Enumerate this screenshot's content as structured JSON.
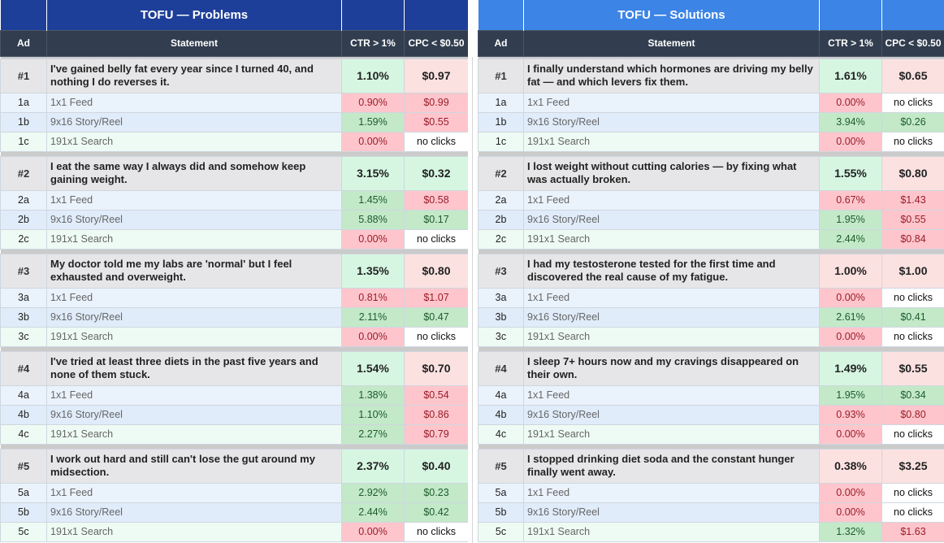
{
  "panels": [
    {
      "title": "TOFU — Problems",
      "headers": {
        "ad": "Ad",
        "statement": "Statement",
        "ctr": "CTR > 1%",
        "cpc": "CPC < $0.50"
      },
      "ads": [
        {
          "id": "#1",
          "statement": "I've gained belly fat every year since I turned 40, and nothing I do reverses it.",
          "ctr": "1.10%",
          "ctr_status": "good",
          "cpc": "$0.97",
          "cpc_status": "bad",
          "variants": [
            {
              "id": "1a",
              "label": "1x1 Feed",
              "ctr": "0.90%",
              "ctr_status": "bad",
              "cpc": "$0.99",
              "cpc_status": "bad"
            },
            {
              "id": "1b",
              "label": "9x16 Story/Reel",
              "ctr": "1.59%",
              "ctr_status": "good",
              "cpc": "$0.55",
              "cpc_status": "bad"
            },
            {
              "id": "1c",
              "label": "191x1 Search",
              "ctr": "0.00%",
              "ctr_status": "bad",
              "cpc": "no clicks",
              "cpc_status": "none"
            }
          ]
        },
        {
          "id": "#2",
          "statement": "I eat the same way I always did and somehow keep gaining weight.",
          "ctr": "3.15%",
          "ctr_status": "good",
          "cpc": "$0.32",
          "cpc_status": "good",
          "variants": [
            {
              "id": "2a",
              "label": "1x1 Feed",
              "ctr": "1.45%",
              "ctr_status": "good",
              "cpc": "$0.58",
              "cpc_status": "bad"
            },
            {
              "id": "2b",
              "label": "9x16 Story/Reel",
              "ctr": "5.88%",
              "ctr_status": "good",
              "cpc": "$0.17",
              "cpc_status": "good"
            },
            {
              "id": "2c",
              "label": "191x1 Search",
              "ctr": "0.00%",
              "ctr_status": "bad",
              "cpc": "no clicks",
              "cpc_status": "none"
            }
          ]
        },
        {
          "id": "#3",
          "statement": "My doctor told me my labs are 'normal' but I feel exhausted and overweight.",
          "ctr": "1.35%",
          "ctr_status": "good",
          "cpc": "$0.80",
          "cpc_status": "bad",
          "variants": [
            {
              "id": "3a",
              "label": "1x1 Feed",
              "ctr": "0.81%",
              "ctr_status": "bad",
              "cpc": "$1.07",
              "cpc_status": "bad"
            },
            {
              "id": "3b",
              "label": "9x16 Story/Reel",
              "ctr": "2.11%",
              "ctr_status": "good",
              "cpc": "$0.47",
              "cpc_status": "good"
            },
            {
              "id": "3c",
              "label": "191x1 Search",
              "ctr": "0.00%",
              "ctr_status": "bad",
              "cpc": "no clicks",
              "cpc_status": "none"
            }
          ]
        },
        {
          "id": "#4",
          "statement": "I've tried at least three diets in the past five years and none of them stuck.",
          "ctr": "1.54%",
          "ctr_status": "good",
          "cpc": "$0.70",
          "cpc_status": "bad",
          "variants": [
            {
              "id": "4a",
              "label": "1x1 Feed",
              "ctr": "1.38%",
              "ctr_status": "good",
              "cpc": "$0.54",
              "cpc_status": "bad"
            },
            {
              "id": "4b",
              "label": "9x16 Story/Reel",
              "ctr": "1.10%",
              "ctr_status": "good",
              "cpc": "$0.86",
              "cpc_status": "bad"
            },
            {
              "id": "4c",
              "label": "191x1 Search",
              "ctr": "2.27%",
              "ctr_status": "good",
              "cpc": "$0.79",
              "cpc_status": "bad"
            }
          ]
        },
        {
          "id": "#5",
          "statement": "I work out hard and still can't lose the gut around my midsection.",
          "ctr": "2.37%",
          "ctr_status": "good",
          "cpc": "$0.40",
          "cpc_status": "good",
          "variants": [
            {
              "id": "5a",
              "label": "1x1 Feed",
              "ctr": "2.92%",
              "ctr_status": "good",
              "cpc": "$0.23",
              "cpc_status": "good"
            },
            {
              "id": "5b",
              "label": "9x16 Story/Reel",
              "ctr": "2.44%",
              "ctr_status": "good",
              "cpc": "$0.42",
              "cpc_status": "good"
            },
            {
              "id": "5c",
              "label": "191x1 Search",
              "ctr": "0.00%",
              "ctr_status": "bad",
              "cpc": "no clicks",
              "cpc_status": "none"
            }
          ]
        }
      ]
    },
    {
      "title": "TOFU — Solutions",
      "headers": {
        "ad": "Ad",
        "statement": "Statement",
        "ctr": "CTR > 1%",
        "cpc": "CPC < $0.50"
      },
      "ads": [
        {
          "id": "#1",
          "statement": "I finally understand which hormones are driving my belly fat — and which levers fix them.",
          "ctr": "1.61%",
          "ctr_status": "good",
          "cpc": "$0.65",
          "cpc_status": "bad",
          "variants": [
            {
              "id": "1a",
              "label": "1x1 Feed",
              "ctr": "0.00%",
              "ctr_status": "bad",
              "cpc": "no clicks",
              "cpc_status": "none"
            },
            {
              "id": "1b",
              "label": "9x16 Story/Reel",
              "ctr": "3.94%",
              "ctr_status": "good",
              "cpc": "$0.26",
              "cpc_status": "good"
            },
            {
              "id": "1c",
              "label": "191x1 Search",
              "ctr": "0.00%",
              "ctr_status": "bad",
              "cpc": "no clicks",
              "cpc_status": "none"
            }
          ]
        },
        {
          "id": "#2",
          "statement": "I lost weight without cutting calories — by fixing what was actually broken.",
          "ctr": "1.55%",
          "ctr_status": "good",
          "cpc": "$0.80",
          "cpc_status": "bad",
          "variants": [
            {
              "id": "2a",
              "label": "1x1 Feed",
              "ctr": "0.67%",
              "ctr_status": "bad",
              "cpc": "$1.43",
              "cpc_status": "bad"
            },
            {
              "id": "2b",
              "label": "9x16 Story/Reel",
              "ctr": "1.95%",
              "ctr_status": "good",
              "cpc": "$0.55",
              "cpc_status": "bad"
            },
            {
              "id": "2c",
              "label": "191x1 Search",
              "ctr": "2.44%",
              "ctr_status": "good",
              "cpc": "$0.84",
              "cpc_status": "bad"
            }
          ]
        },
        {
          "id": "#3",
          "statement": "I had my testosterone tested for the first time and discovered the real cause of my fatigue.",
          "ctr": "1.00%",
          "ctr_status": "bad",
          "cpc": "$1.00",
          "cpc_status": "bad",
          "variants": [
            {
              "id": "3a",
              "label": "1x1 Feed",
              "ctr": "0.00%",
              "ctr_status": "bad",
              "cpc": "no clicks",
              "cpc_status": "none"
            },
            {
              "id": "3b",
              "label": "9x16 Story/Reel",
              "ctr": "2.61%",
              "ctr_status": "good",
              "cpc": "$0.41",
              "cpc_status": "good"
            },
            {
              "id": "3c",
              "label": "191x1 Search",
              "ctr": "0.00%",
              "ctr_status": "bad",
              "cpc": "no clicks",
              "cpc_status": "none"
            }
          ]
        },
        {
          "id": "#4",
          "statement": "I sleep 7+ hours now and my cravings disappeared on their own.",
          "ctr": "1.49%",
          "ctr_status": "good",
          "cpc": "$0.55",
          "cpc_status": "bad",
          "variants": [
            {
              "id": "4a",
              "label": "1x1 Feed",
              "ctr": "1.95%",
              "ctr_status": "good",
              "cpc": "$0.34",
              "cpc_status": "good"
            },
            {
              "id": "4b",
              "label": "9x16 Story/Reel",
              "ctr": "0.93%",
              "ctr_status": "bad",
              "cpc": "$0.80",
              "cpc_status": "bad"
            },
            {
              "id": "4c",
              "label": "191x1 Search",
              "ctr": "0.00%",
              "ctr_status": "bad",
              "cpc": "no clicks",
              "cpc_status": "none"
            }
          ]
        },
        {
          "id": "#5",
          "statement": "I stopped drinking diet soda and the constant hunger finally went away.",
          "ctr": "0.38%",
          "ctr_status": "bad",
          "cpc": "$3.25",
          "cpc_status": "bad",
          "variants": [
            {
              "id": "5a",
              "label": "1x1 Feed",
              "ctr": "0.00%",
              "ctr_status": "bad",
              "cpc": "no clicks",
              "cpc_status": "none"
            },
            {
              "id": "5b",
              "label": "9x16 Story/Reel",
              "ctr": "0.00%",
              "ctr_status": "bad",
              "cpc": "no clicks",
              "cpc_status": "none"
            },
            {
              "id": "5c",
              "label": "191x1 Search",
              "ctr": "1.32%",
              "ctr_status": "good",
              "cpc": "$1.63",
              "cpc_status": "bad"
            }
          ]
        }
      ]
    }
  ],
  "colors": {
    "problems_title_bg": "#1e3f99",
    "solutions_title_bg": "#3c84e6",
    "header_bg": "#323e4f",
    "good_main": "#d6f6e2",
    "bad_main": "#fce1e1",
    "good_sub": "#c3e9c9",
    "bad_sub": "#fec6cc"
  }
}
